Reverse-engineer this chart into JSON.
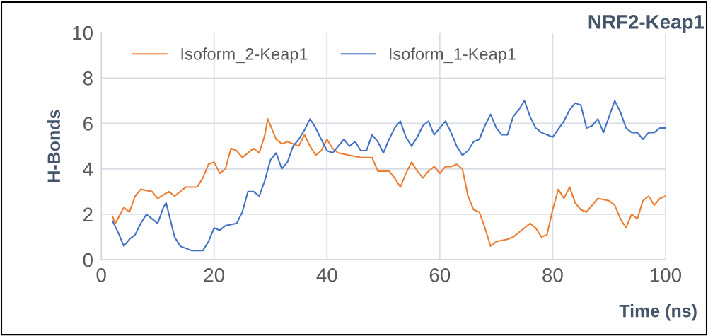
{
  "chart_data": {
    "type": "line",
    "title": "NRF2-Keap1",
    "xlabel": "Time (ns)",
    "ylabel": "H-Bonds",
    "xlim": [
      0,
      100
    ],
    "xticks": [
      0,
      20,
      40,
      60,
      80,
      100
    ],
    "ylim": [
      0,
      10
    ],
    "yticks": [
      0,
      2,
      4,
      6,
      8,
      10
    ],
    "grid": true,
    "legend": "top left",
    "line_style": "solid",
    "marker": "none",
    "series": [
      {
        "name": "Isoform_2-Keap1",
        "color": "#ed7d31",
        "x": [
          2,
          2.5,
          4,
          5,
          6,
          7,
          9,
          10,
          12,
          13,
          15,
          17,
          18,
          19,
          20,
          21,
          22,
          23,
          24,
          25,
          27,
          28,
          29,
          29.5,
          30,
          31,
          32,
          33,
          35,
          36,
          37,
          38,
          39,
          40,
          41,
          42,
          44,
          46,
          48,
          49,
          51,
          52,
          53,
          54,
          55,
          56,
          57,
          58,
          59,
          60,
          61,
          62,
          63,
          64,
          65,
          66,
          67,
          68,
          69,
          70,
          72,
          73,
          75,
          76,
          77,
          78,
          79,
          80,
          81,
          82,
          83,
          84,
          85,
          86,
          88,
          90,
          91,
          92,
          93,
          94,
          95,
          96,
          97,
          98,
          99,
          100
        ],
        "values": [
          1.9,
          1.6,
          2.3,
          2.1,
          2.8,
          3.1,
          3.0,
          2.7,
          3.0,
          2.8,
          3.2,
          3.2,
          3.6,
          4.2,
          4.3,
          3.8,
          4.0,
          4.9,
          4.8,
          4.5,
          4.9,
          4.7,
          5.5,
          6.2,
          5.9,
          5.3,
          5.1,
          5.2,
          5.0,
          5.5,
          5.0,
          4.6,
          4.8,
          5.3,
          4.9,
          4.7,
          4.6,
          4.5,
          4.5,
          3.9,
          3.9,
          3.6,
          3.2,
          3.8,
          4.3,
          3.9,
          3.6,
          3.9,
          4.1,
          3.8,
          4.1,
          4.1,
          4.2,
          4.0,
          2.8,
          2.2,
          2.1,
          1.4,
          0.6,
          0.8,
          0.9,
          1.0,
          1.4,
          1.6,
          1.4,
          1.0,
          1.1,
          2.2,
          3.1,
          2.7,
          3.2,
          2.5,
          2.2,
          2.1,
          2.7,
          2.6,
          2.4,
          1.8,
          1.4,
          2.0,
          1.8,
          2.6,
          2.8,
          2.4,
          2.7,
          2.8
        ]
      },
      {
        "name": "Isoform_1-Keap1",
        "color": "#4472c4",
        "x": [
          2,
          3,
          4,
          5,
          6,
          7,
          8,
          9,
          10,
          11,
          11.5,
          12,
          13,
          14,
          15,
          16,
          18,
          19,
          20,
          21,
          22,
          24,
          25,
          26,
          27,
          28,
          29,
          30,
          31,
          32,
          33,
          34,
          35,
          36,
          37,
          38,
          39,
          40,
          41,
          42,
          43,
          44,
          45,
          46,
          47,
          48,
          49,
          50,
          51,
          52,
          53,
          54,
          55,
          56,
          57,
          58,
          59,
          60,
          61,
          62,
          63,
          64,
          65,
          66,
          67,
          68,
          69,
          70,
          71,
          72,
          73,
          74,
          75,
          76,
          77,
          78,
          79,
          80,
          82,
          83,
          84,
          85,
          86,
          87,
          88,
          89,
          90,
          91,
          92,
          93,
          94,
          95,
          96,
          97,
          98,
          99,
          100
        ],
        "values": [
          1.7,
          1.2,
          0.6,
          0.9,
          1.1,
          1.6,
          2.0,
          1.8,
          1.6,
          2.3,
          2.5,
          2.0,
          1.0,
          0.6,
          0.5,
          0.4,
          0.4,
          0.8,
          1.4,
          1.3,
          1.5,
          1.6,
          2.1,
          3.0,
          3.0,
          2.8,
          3.5,
          4.4,
          4.7,
          4.0,
          4.3,
          5.0,
          5.3,
          5.7,
          6.2,
          5.8,
          5.3,
          4.8,
          4.7,
          5.0,
          5.3,
          5.0,
          5.2,
          4.8,
          4.8,
          5.5,
          5.2,
          4.7,
          5.3,
          5.8,
          6.1,
          5.4,
          5.0,
          5.4,
          5.9,
          6.1,
          5.5,
          5.8,
          6.1,
          5.6,
          5.0,
          4.6,
          4.8,
          5.2,
          5.3,
          5.9,
          6.4,
          5.8,
          5.5,
          5.5,
          6.3,
          6.6,
          7.0,
          6.3,
          5.8,
          5.6,
          5.5,
          5.4,
          6.1,
          6.6,
          6.9,
          6.8,
          5.8,
          5.9,
          6.2,
          5.6,
          6.3,
          7.0,
          6.5,
          5.8,
          5.6,
          5.6,
          5.3,
          5.6,
          5.6,
          5.8,
          5.8
        ]
      }
    ]
  }
}
